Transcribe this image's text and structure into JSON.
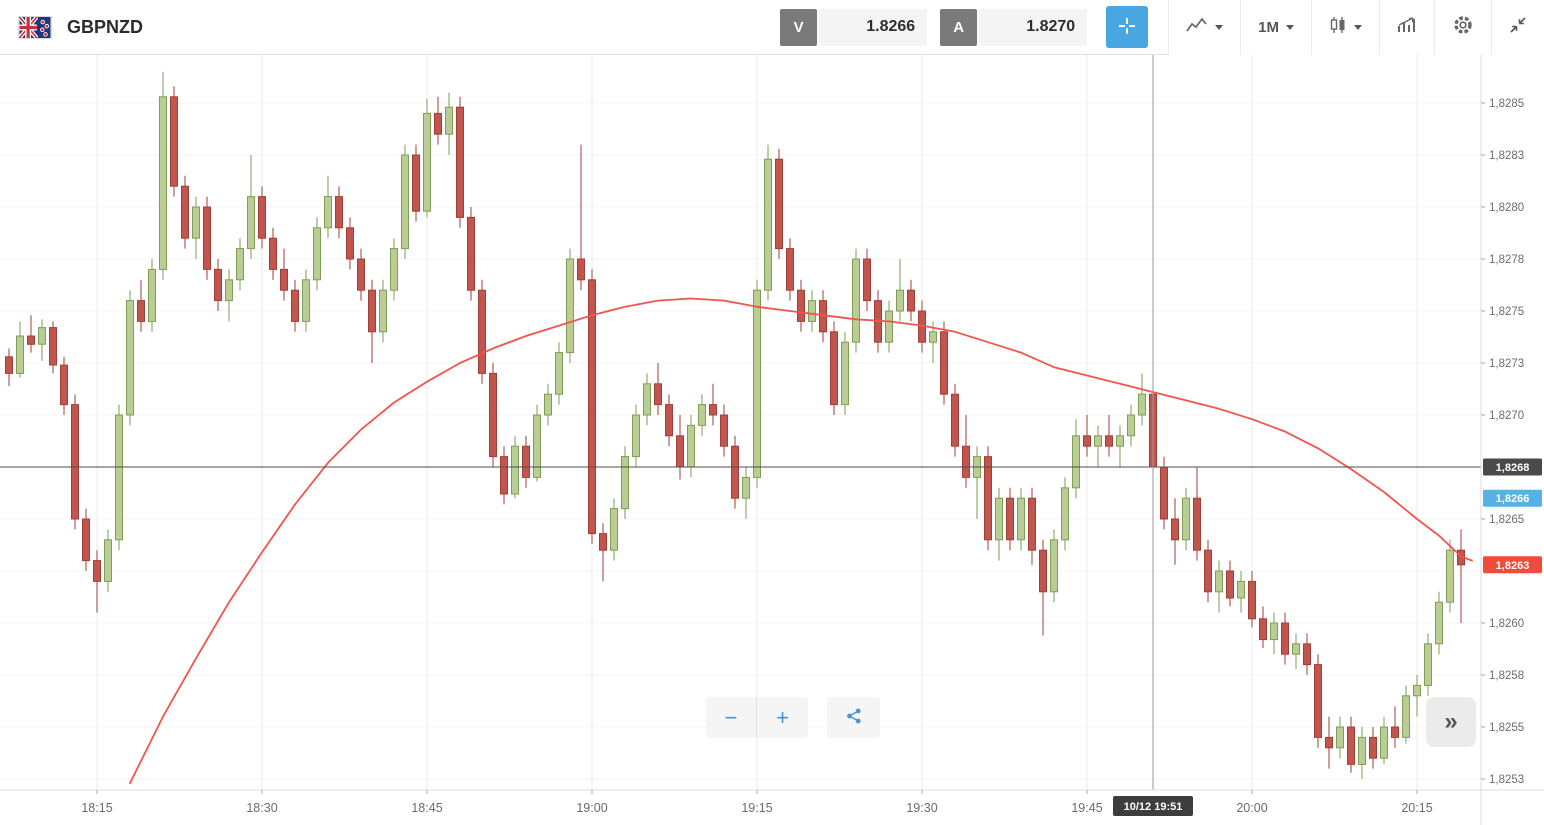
{
  "header": {
    "symbol": "GBPNZD",
    "sell": {
      "button": "V",
      "price": "1.8266"
    },
    "buy": {
      "button": "A",
      "price": "1.8270"
    },
    "timeframe": "1M"
  },
  "controls": {
    "zoom_out": "−",
    "zoom_in": "+",
    "expand": "»"
  },
  "colors": {
    "up_fill": "#b9cd94",
    "up_stroke": "#7f9d55",
    "down_fill": "#c2564f",
    "down_stroke": "#9e3f38",
    "accent_blue": "#48a7e0",
    "sell_badge": "#55b2e3",
    "last_badge": "#f14b3c",
    "ref_badge": "#4a4a4a"
  },
  "chart_data": {
    "type": "candlestick",
    "symbol": "GBPNZD",
    "timeframe": "1M",
    "price_base": 1.82,
    "price_unit": 0.0001,
    "ylim": [
      1.82525,
      1.8285
    ],
    "y_axis": {
      "top_value": 1.8285,
      "step": 0.00025,
      "rows": 14,
      "ticks": [
        {
          "label": "1,8285",
          "value": 1.8285
        },
        {
          "label": "1,8283",
          "value": 1.82825
        },
        {
          "label": "1,8280",
          "value": 1.828
        },
        {
          "label": "1,8278",
          "value": 1.82775
        },
        {
          "label": "1,8275",
          "value": 1.8275
        },
        {
          "label": "1,8273",
          "value": 1.82725
        },
        {
          "label": "1,8270",
          "value": 1.827
        },
        {
          "label": "1,8265",
          "value": 1.8265
        },
        {
          "label": "1,8260",
          "value": 1.826
        },
        {
          "label": "1,8258",
          "value": 1.82575
        },
        {
          "label": "1,8255",
          "value": 1.8255
        },
        {
          "label": "1,8253",
          "value": 1.82525
        }
      ]
    },
    "x_axis": {
      "ticks": [
        "18:15",
        "18:30",
        "18:45",
        "19:00",
        "19:15",
        "19:30",
        "19:45",
        "20:00",
        "20:15"
      ]
    },
    "candles": [
      [
        "18:07",
        72.8,
        73.2,
        71.4,
        72.0
      ],
      [
        "18:08",
        72.0,
        74.5,
        71.8,
        73.8
      ],
      [
        "18:09",
        73.8,
        74.8,
        73.0,
        73.4
      ],
      [
        "18:10",
        73.4,
        74.6,
        72.6,
        74.2
      ],
      [
        "18:11",
        74.2,
        74.5,
        72.0,
        72.4
      ],
      [
        "18:12",
        72.4,
        72.8,
        70.0,
        70.5
      ],
      [
        "18:13",
        70.5,
        71.0,
        64.5,
        65.0
      ],
      [
        "18:14",
        65.0,
        65.5,
        62.5,
        63.0
      ],
      [
        "18:15",
        63.0,
        63.5,
        60.5,
        62.0
      ],
      [
        "18:16",
        62.0,
        64.5,
        61.5,
        64.0
      ],
      [
        "18:17",
        64.0,
        70.5,
        63.5,
        70.0
      ],
      [
        "18:18",
        70.0,
        76.0,
        69.5,
        75.5
      ],
      [
        "18:19",
        75.5,
        76.5,
        74.0,
        74.5
      ],
      [
        "18:20",
        74.5,
        77.5,
        74.0,
        77.0
      ],
      [
        "18:21",
        77.0,
        86.5,
        76.5,
        85.3
      ],
      [
        "18:22",
        85.3,
        85.8,
        80.5,
        81.0
      ],
      [
        "18:23",
        81.0,
        81.5,
        78.0,
        78.5
      ],
      [
        "18:24",
        78.5,
        80.5,
        77.5,
        80.0
      ],
      [
        "18:25",
        80.0,
        80.5,
        76.5,
        77.0
      ],
      [
        "18:26",
        77.0,
        77.5,
        75.0,
        75.5
      ],
      [
        "18:27",
        75.5,
        77.0,
        74.5,
        76.5
      ],
      [
        "18:28",
        76.5,
        78.5,
        76.0,
        78.0
      ],
      [
        "18:29",
        78.0,
        82.5,
        77.5,
        80.5
      ],
      [
        "18:30",
        80.5,
        81.0,
        78.0,
        78.5
      ],
      [
        "18:31",
        78.5,
        79.0,
        76.5,
        77.0
      ],
      [
        "18:32",
        77.0,
        78.0,
        75.5,
        76.0
      ],
      [
        "18:33",
        76.0,
        76.5,
        74.0,
        74.5
      ],
      [
        "18:34",
        74.5,
        77.0,
        74.0,
        76.5
      ],
      [
        "18:35",
        76.5,
        79.5,
        76.0,
        79.0
      ],
      [
        "18:36",
        79.0,
        81.5,
        78.5,
        80.5
      ],
      [
        "18:37",
        80.5,
        81.0,
        78.5,
        79.0
      ],
      [
        "18:38",
        79.0,
        79.5,
        77.0,
        77.5
      ],
      [
        "18:39",
        77.5,
        78.0,
        75.5,
        76.0
      ],
      [
        "18:40",
        76.0,
        76.5,
        72.5,
        74.0
      ],
      [
        "18:41",
        74.0,
        76.5,
        73.5,
        76.0
      ],
      [
        "18:42",
        76.0,
        78.5,
        75.5,
        78.0
      ],
      [
        "18:43",
        78.0,
        83.0,
        77.5,
        82.5
      ],
      [
        "18:44",
        82.5,
        83.0,
        79.3,
        79.8
      ],
      [
        "18:45",
        79.8,
        85.2,
        79.5,
        84.5
      ],
      [
        "18:46",
        84.5,
        85.3,
        83.0,
        83.5
      ],
      [
        "18:47",
        83.5,
        85.5,
        82.5,
        84.8
      ],
      [
        "18:48",
        84.8,
        85.3,
        79.0,
        79.5
      ],
      [
        "18:49",
        79.5,
        80.0,
        75.5,
        76.0
      ],
      [
        "18:50",
        76.0,
        76.5,
        71.5,
        72.0
      ],
      [
        "18:51",
        72.0,
        72.5,
        67.5,
        68.0
      ],
      [
        "18:52",
        68.0,
        68.5,
        65.7,
        66.2
      ],
      [
        "18:53",
        66.2,
        69.0,
        66.0,
        68.5
      ],
      [
        "18:54",
        68.5,
        69.0,
        66.5,
        67.0
      ],
      [
        "18:55",
        67.0,
        70.5,
        66.8,
        70.0
      ],
      [
        "18:56",
        70.0,
        71.5,
        69.5,
        71.0
      ],
      [
        "18:57",
        71.0,
        73.5,
        70.5,
        73.0
      ],
      [
        "18:58",
        73.0,
        78.0,
        72.5,
        77.5
      ],
      [
        "18:59",
        77.5,
        83.0,
        76.0,
        76.5
      ],
      [
        "19:00",
        76.5,
        77.0,
        63.8,
        64.3
      ],
      [
        "19:01",
        64.3,
        64.8,
        62.0,
        63.5
      ],
      [
        "19:02",
        63.5,
        66.0,
        63.0,
        65.5
      ],
      [
        "19:03",
        65.5,
        68.5,
        65.0,
        68.0
      ],
      [
        "19:04",
        68.0,
        70.5,
        67.5,
        70.0
      ],
      [
        "19:05",
        70.0,
        72.0,
        69.5,
        71.5
      ],
      [
        "19:06",
        71.5,
        72.5,
        70.0,
        70.5
      ],
      [
        "19:07",
        70.5,
        71.0,
        68.5,
        69.0
      ],
      [
        "19:08",
        69.0,
        70.0,
        66.9,
        67.5
      ],
      [
        "19:09",
        67.5,
        70.0,
        67.0,
        69.5
      ],
      [
        "19:10",
        69.5,
        71.0,
        69.0,
        70.5
      ],
      [
        "19:11",
        70.5,
        71.5,
        69.5,
        70.0
      ],
      [
        "19:12",
        70.0,
        70.5,
        68.0,
        68.5
      ],
      [
        "19:13",
        68.5,
        69.0,
        65.5,
        66.0
      ],
      [
        "19:14",
        66.0,
        67.5,
        65.0,
        67.0
      ],
      [
        "19:15",
        67.0,
        76.5,
        66.5,
        76.0
      ],
      [
        "19:16",
        76.0,
        83.0,
        75.5,
        82.3
      ],
      [
        "19:17",
        82.3,
        82.8,
        77.5,
        78.0
      ],
      [
        "19:18",
        78.0,
        78.5,
        75.5,
        76.0
      ],
      [
        "19:19",
        76.0,
        76.5,
        74.0,
        74.5
      ],
      [
        "19:20",
        74.5,
        76.0,
        74.0,
        75.5
      ],
      [
        "19:21",
        75.5,
        76.0,
        73.5,
        74.0
      ],
      [
        "19:22",
        74.0,
        74.5,
        70.0,
        70.5
      ],
      [
        "19:23",
        70.5,
        74.0,
        70.0,
        73.5
      ],
      [
        "19:24",
        73.5,
        78.0,
        73.0,
        77.5
      ],
      [
        "19:25",
        77.5,
        78.0,
        75.0,
        75.5
      ],
      [
        "19:26",
        75.5,
        76.0,
        73.0,
        73.5
      ],
      [
        "19:27",
        73.5,
        75.5,
        73.0,
        75.0
      ],
      [
        "19:28",
        75.0,
        77.5,
        74.5,
        76.0
      ],
      [
        "19:29",
        76.0,
        76.5,
        74.5,
        75.0
      ],
      [
        "19:30",
        75.0,
        75.5,
        73.0,
        73.5
      ],
      [
        "19:31",
        73.5,
        74.5,
        72.5,
        74.0
      ],
      [
        "19:32",
        74.0,
        74.5,
        70.5,
        71.0
      ],
      [
        "19:33",
        71.0,
        71.5,
        68.0,
        68.5
      ],
      [
        "19:34",
        68.5,
        70.0,
        66.5,
        67.0
      ],
      [
        "19:35",
        67.0,
        68.5,
        65.0,
        68.0
      ],
      [
        "19:36",
        68.0,
        68.5,
        63.5,
        64.0
      ],
      [
        "19:37",
        64.0,
        66.5,
        63.0,
        66.0
      ],
      [
        "19:38",
        66.0,
        66.5,
        63.5,
        64.0
      ],
      [
        "19:39",
        64.0,
        66.5,
        63.5,
        66.0
      ],
      [
        "19:40",
        66.0,
        66.5,
        62.8,
        63.5
      ],
      [
        "19:41",
        63.5,
        64.0,
        59.4,
        61.5
      ],
      [
        "19:42",
        61.5,
        64.5,
        61.0,
        64.0
      ],
      [
        "19:43",
        64.0,
        67.0,
        63.5,
        66.5
      ],
      [
        "19:44",
        66.5,
        69.8,
        66.0,
        69.0
      ],
      [
        "19:45",
        69.0,
        70.0,
        68.0,
        68.5
      ],
      [
        "19:46",
        68.5,
        69.5,
        67.5,
        69.0
      ],
      [
        "19:47",
        69.0,
        70.0,
        68.0,
        68.5
      ],
      [
        "19:48",
        68.5,
        69.5,
        67.5,
        69.0
      ],
      [
        "19:49",
        69.0,
        70.5,
        68.5,
        70.0
      ],
      [
        "19:50",
        70.0,
        72.0,
        69.5,
        71.0
      ],
      [
        "19:51",
        71.0,
        71.5,
        67.0,
        67.5
      ],
      [
        "19:52",
        67.5,
        68.0,
        64.5,
        65.0
      ],
      [
        "19:53",
        65.0,
        66.0,
        62.8,
        64.0
      ],
      [
        "19:54",
        64.0,
        66.5,
        63.5,
        66.0
      ],
      [
        "19:55",
        66.0,
        67.5,
        63.0,
        63.5
      ],
      [
        "19:56",
        63.5,
        64.0,
        61.0,
        61.5
      ],
      [
        "19:57",
        61.5,
        63.0,
        60.5,
        62.5
      ],
      [
        "19:58",
        62.5,
        63.0,
        60.8,
        61.2
      ],
      [
        "19:59",
        61.2,
        62.5,
        60.5,
        62.0
      ],
      [
        "20:00",
        62.0,
        62.5,
        59.8,
        60.2
      ],
      [
        "20:01",
        60.2,
        60.8,
        58.8,
        59.2
      ],
      [
        "20:02",
        59.2,
        60.5,
        58.5,
        60.0
      ],
      [
        "20:03",
        60.0,
        60.5,
        58.0,
        58.5
      ],
      [
        "20:04",
        58.5,
        59.5,
        57.8,
        59.0
      ],
      [
        "20:05",
        59.0,
        59.5,
        57.5,
        58.0
      ],
      [
        "20:06",
        58.0,
        58.5,
        54.0,
        54.5
      ],
      [
        "20:07",
        54.5,
        55.5,
        53.0,
        54.0
      ],
      [
        "20:08",
        54.0,
        55.5,
        53.5,
        55.0
      ],
      [
        "20:09",
        55.0,
        55.5,
        52.8,
        53.2
      ],
      [
        "20:10",
        53.2,
        55.0,
        52.5,
        54.5
      ],
      [
        "20:11",
        54.5,
        55.0,
        53.0,
        53.5
      ],
      [
        "20:12",
        53.5,
        55.5,
        53.2,
        55.0
      ],
      [
        "20:13",
        55.0,
        56.0,
        54.0,
        54.5
      ],
      [
        "20:14",
        54.5,
        57.0,
        54.2,
        56.5
      ],
      [
        "20:15",
        56.5,
        57.5,
        55.5,
        57.0
      ],
      [
        "20:16",
        57.0,
        59.5,
        56.5,
        59.0
      ],
      [
        "20:17",
        59.0,
        61.5,
        58.5,
        61.0
      ],
      [
        "20:18",
        61.0,
        64.0,
        60.5,
        63.5
      ],
      [
        "20:19",
        63.5,
        64.5,
        60.0,
        62.8
      ]
    ],
    "ma_line": {
      "name": "moving-average",
      "color": "#f4534e",
      "points": [
        [
          "18:18",
          52.3
        ],
        [
          "18:21",
          55.5
        ],
        [
          "18:24",
          58.3
        ],
        [
          "18:27",
          61.0
        ],
        [
          "18:30",
          63.4
        ],
        [
          "18:33",
          65.7
        ],
        [
          "18:36",
          67.7
        ],
        [
          "18:39",
          69.3
        ],
        [
          "18:42",
          70.6
        ],
        [
          "18:45",
          71.6
        ],
        [
          "18:48",
          72.5
        ],
        [
          "18:51",
          73.2
        ],
        [
          "18:54",
          73.8
        ],
        [
          "18:57",
          74.3
        ],
        [
          "19:00",
          74.8
        ],
        [
          "19:03",
          75.2
        ],
        [
          "19:06",
          75.5
        ],
        [
          "19:09",
          75.6
        ],
        [
          "19:12",
          75.5
        ],
        [
          "19:15",
          75.2
        ],
        [
          "19:18",
          75.0
        ],
        [
          "19:21",
          74.8
        ],
        [
          "19:24",
          74.6
        ],
        [
          "19:27",
          74.5
        ],
        [
          "19:30",
          74.3
        ],
        [
          "19:33",
          74.0
        ],
        [
          "19:36",
          73.5
        ],
        [
          "19:39",
          73.0
        ],
        [
          "19:42",
          72.3
        ],
        [
          "19:45",
          71.9
        ],
        [
          "19:48",
          71.5
        ],
        [
          "19:51",
          71.1
        ],
        [
          "19:54",
          70.7
        ],
        [
          "19:57",
          70.3
        ],
        [
          "20:00",
          69.8
        ],
        [
          "20:03",
          69.2
        ],
        [
          "20:06",
          68.4
        ],
        [
          "20:09",
          67.4
        ],
        [
          "20:12",
          66.3
        ],
        [
          "20:15",
          65.0
        ],
        [
          "20:17",
          64.2
        ],
        [
          "20:19",
          63.2
        ],
        [
          "20:20",
          63.0
        ]
      ]
    },
    "reference_line": {
      "value": 1.82675,
      "label": "1,8268"
    },
    "badges": [
      {
        "label": "1,8268",
        "value": 1.82675,
        "color_key": "ref_badge"
      },
      {
        "label": "1,8266",
        "value": 1.8266,
        "color_key": "sell_badge"
      },
      {
        "label": "1,8263",
        "value": 1.82628,
        "color_key": "last_badge"
      }
    ],
    "crosshair": {
      "x_time": "19:51",
      "label": "10/12 19:51"
    }
  }
}
